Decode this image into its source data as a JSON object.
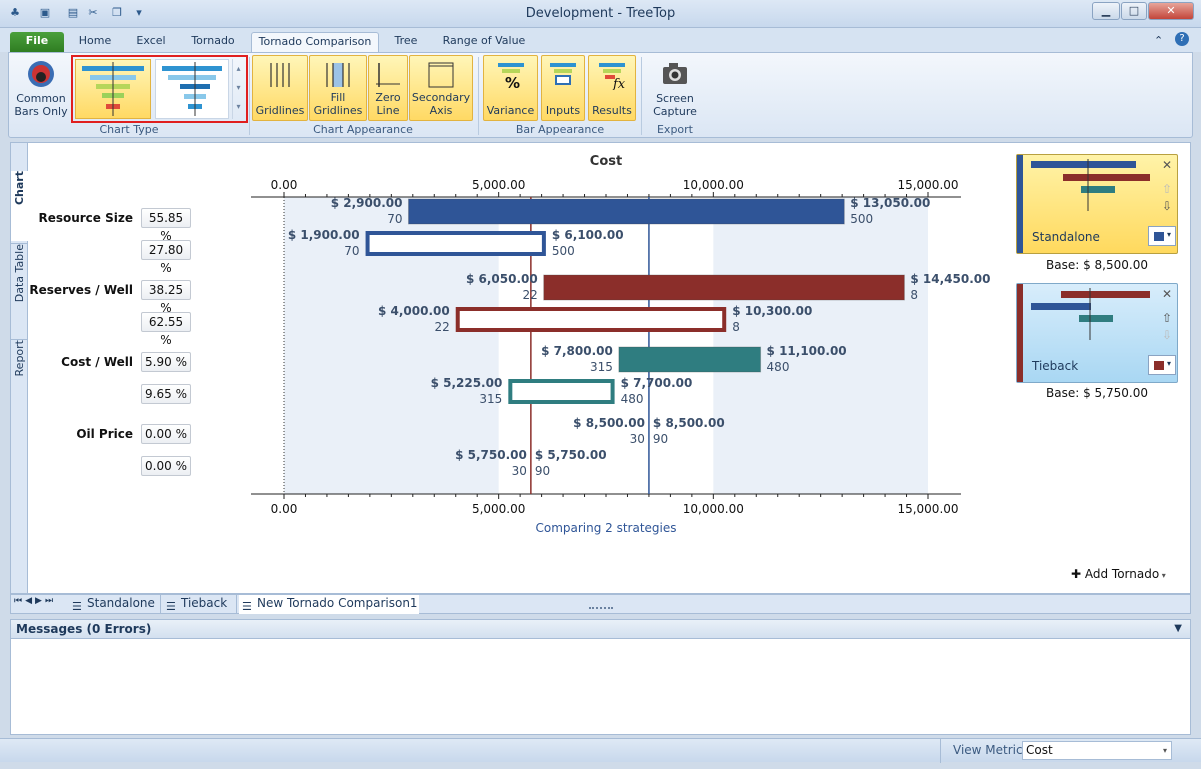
{
  "window": {
    "title": "Development - TreeTop"
  },
  "ribbon_tabs": [
    "File",
    "Home",
    "Excel",
    "Tornado",
    "Tornado Comparison",
    "Tree",
    "Range of Value"
  ],
  "ribbon": {
    "common_bars": "Common\nBars Only",
    "chart_type_label": "Chart Type",
    "gridlines": "Gridlines",
    "fill_gridlines": "Fill\nGridlines",
    "zero_line": "Zero\nLine",
    "secondary_axis": "Secondary\nAxis",
    "chart_appearance_label": "Chart Appearance",
    "variance": "Variance",
    "inputs": "Inputs",
    "results": "Results",
    "bar_appearance_label": "Bar Appearance",
    "screen_capture": "Screen\nCapture",
    "export_label": "Export"
  },
  "side_tabs": [
    "Chart",
    "Data Table",
    "Report"
  ],
  "rows": [
    {
      "label": "Resource Size",
      "pct_a": "55.85 %",
      "pct_b": "27.80 %"
    },
    {
      "label": "Reserves / Well",
      "pct_a": "38.25 %",
      "pct_b": "62.55 %"
    },
    {
      "label": "Cost / Well",
      "pct_a": "5.90 %",
      "pct_b": "9.65 %"
    },
    {
      "label": "Oil Price",
      "pct_a": "0.00 %",
      "pct_b": "0.00 %"
    }
  ],
  "chart_data": {
    "type": "bar",
    "title": "Cost",
    "subtitle": "Comparing 2 strategies",
    "xlim": [
      0,
      15000
    ],
    "ticks": [
      "0.00",
      "5,000.00",
      "10,000.00",
      "15,000.00"
    ],
    "tick_values": [
      0,
      5000,
      10000,
      15000
    ],
    "colors": {
      "standalone": "#2f5597",
      "tieback": "#8b2e2a"
    },
    "series": [
      {
        "name": "Standalone",
        "base": 8500,
        "color": "#2f5597",
        "bars": [
          {
            "low": 2900,
            "high": 13050,
            "low_label": "$ 2,900.00",
            "high_label": "$ 13,050.00",
            "low_input": "70",
            "high_input": "500",
            "color": "#2f5597"
          },
          {
            "low": 6050,
            "high": 14450,
            "low_label": "$ 6,050.00",
            "high_label": "$ 14,450.00",
            "low_input": "22",
            "high_input": "8",
            "color": "#8b2e2a"
          },
          {
            "low": 7800,
            "high": 11100,
            "low_label": "$ 7,800.00",
            "high_label": "$ 11,100.00",
            "low_input": "315",
            "high_input": "480",
            "color": "#2f7d80"
          },
          {
            "low": 8500,
            "high": 8500,
            "low_label": "$ 8,500.00",
            "high_label": "$ 8,500.00",
            "low_input": "30",
            "high_input": "90",
            "color": "#2f5597"
          }
        ]
      },
      {
        "name": "Tieback",
        "base": 5750,
        "color": "#8b2e2a",
        "bars": [
          {
            "low": 1900,
            "high": 6100,
            "low_label": "$ 1,900.00",
            "high_label": "$ 6,100.00",
            "low_input": "70",
            "high_input": "500",
            "color": "#2f5597"
          },
          {
            "low": 4000,
            "high": 10300,
            "low_label": "$ 4,000.00",
            "high_label": "$ 10,300.00",
            "low_input": "22",
            "high_input": "8",
            "color": "#8b2e2a"
          },
          {
            "low": 5225,
            "high": 7700,
            "low_label": "$ 5,225.00",
            "high_label": "$ 7,700.00",
            "low_input": "315",
            "high_input": "480",
            "color": "#2f7d80"
          },
          {
            "low": 5750,
            "high": 5750,
            "low_label": "$ 5,750.00",
            "high_label": "$ 5,750.00",
            "low_input": "30",
            "high_input": "90",
            "color": "#8b2e2a"
          }
        ]
      }
    ]
  },
  "cards": [
    {
      "name": "Standalone",
      "base_label": "Base: $ 8,500.00",
      "color": "#2f5597"
    },
    {
      "name": "Tieback",
      "base_label": "Base: $ 5,750.00",
      "color": "#8b2e2a"
    }
  ],
  "add_tornado": "Add Tornado",
  "sheet_tabs": [
    "Standalone",
    "Tieback",
    "New Tornado Comparison1"
  ],
  "messages": {
    "header": "Messages (0 Errors)"
  },
  "status": {
    "view_metric_label": "View Metric",
    "view_metric_value": "Cost"
  }
}
